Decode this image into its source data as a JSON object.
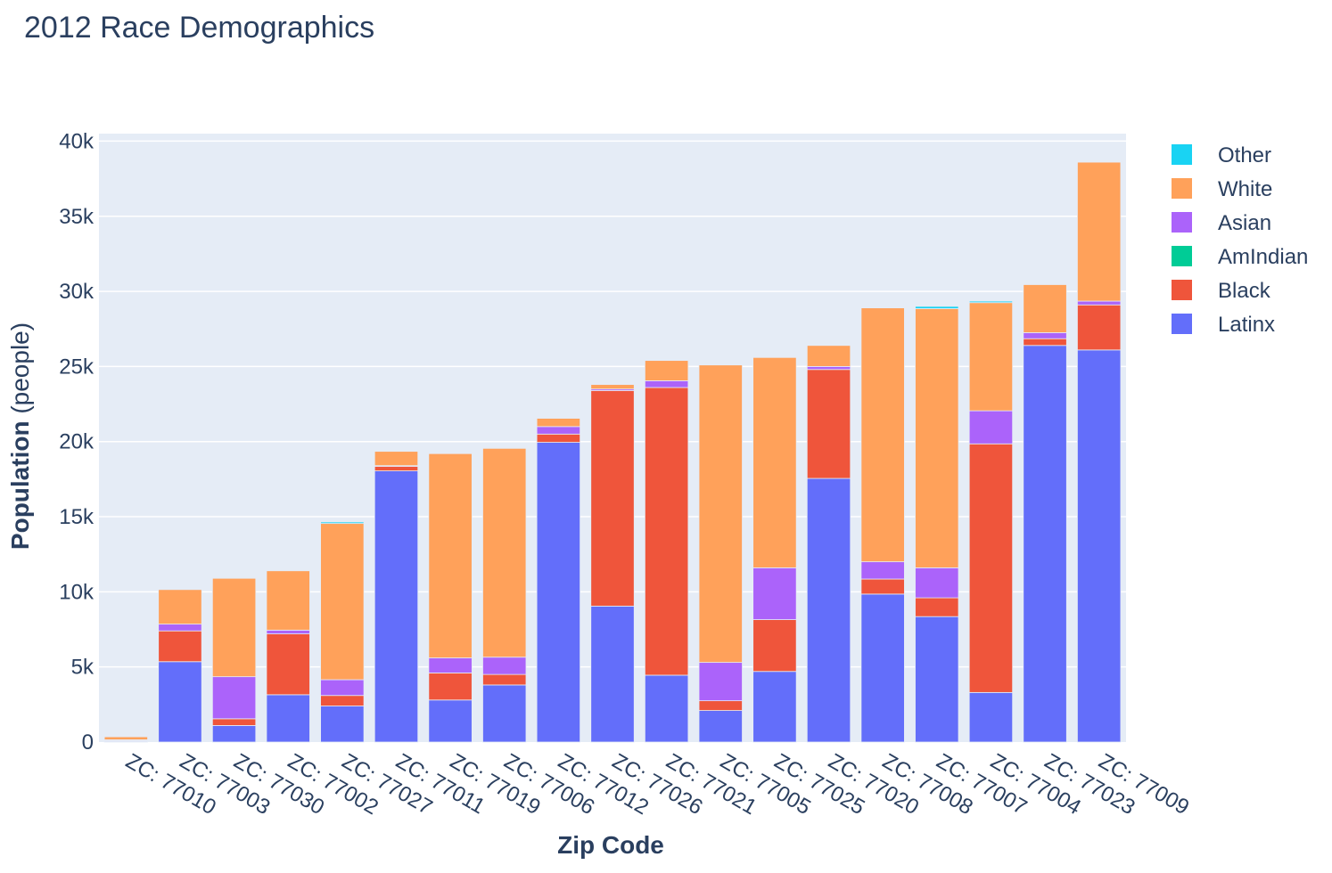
{
  "chart_data": {
    "type": "bar",
    "barmode": "stack",
    "title": "2012 Race Demographics",
    "xlabel": "Zip Code",
    "ylabel_bold": "Population",
    "ylabel_unit": " (people)",
    "ylim": [
      0,
      40500
    ],
    "yticks": [
      0,
      5000,
      10000,
      15000,
      20000,
      25000,
      30000,
      35000,
      40000
    ],
    "ytick_labels": [
      "0",
      "5k",
      "10k",
      "15k",
      "20k",
      "25k",
      "30k",
      "35k",
      "40k"
    ],
    "grid": true,
    "legend_position": "right",
    "categories": [
      "ZC: 77010",
      "ZC: 77003",
      "ZC: 77030",
      "ZC: 77002",
      "ZC: 77027",
      "ZC: 77011",
      "ZC: 77019",
      "ZC: 77006",
      "ZC: 77012",
      "ZC: 77026",
      "ZC: 77021",
      "ZC: 77005",
      "ZC: 77025",
      "ZC: 77020",
      "ZC: 77008",
      "ZC: 77007",
      "ZC: 77004",
      "ZC: 77023",
      "ZC: 77009"
    ],
    "series": [
      {
        "name": "Latinx",
        "color": "#636efa",
        "values": [
          50,
          5350,
          1100,
          3150,
          2400,
          18050,
          2800,
          3800,
          19950,
          9050,
          4450,
          2100,
          4700,
          17550,
          9850,
          8350,
          3300,
          26400,
          26100
        ]
      },
      {
        "name": "Black",
        "color": "#ef553b",
        "values": [
          50,
          2050,
          450,
          4050,
          700,
          300,
          1800,
          700,
          550,
          14350,
          19150,
          650,
          3450,
          7250,
          1000,
          1250,
          16550,
          450,
          3000
        ]
      },
      {
        "name": "AmIndian",
        "color": "#00cc96",
        "values": [
          0,
          0,
          0,
          0,
          0,
          0,
          0,
          0,
          0,
          0,
          0,
          0,
          0,
          0,
          0,
          0,
          0,
          0,
          0
        ]
      },
      {
        "name": "Asian",
        "color": "#ab63fa",
        "values": [
          50,
          450,
          2800,
          250,
          1050,
          50,
          1000,
          1150,
          500,
          100,
          450,
          2550,
          3450,
          200,
          1150,
          2000,
          2200,
          400,
          250
        ]
      },
      {
        "name": "White",
        "color": "#ffa15a",
        "values": [
          200,
          2300,
          6550,
          3950,
          10400,
          950,
          13600,
          13900,
          550,
          300,
          1350,
          19800,
          14000,
          1400,
          16900,
          17250,
          7200,
          3200,
          9250
        ]
      },
      {
        "name": "Other",
        "color": "#19d3f3",
        "values": [
          0,
          0,
          0,
          0,
          100,
          0,
          0,
          0,
          0,
          0,
          0,
          0,
          0,
          0,
          0,
          150,
          100,
          0,
          0
        ]
      }
    ],
    "legend_order": [
      "Other",
      "White",
      "Asian",
      "AmIndian",
      "Black",
      "Latinx"
    ]
  }
}
